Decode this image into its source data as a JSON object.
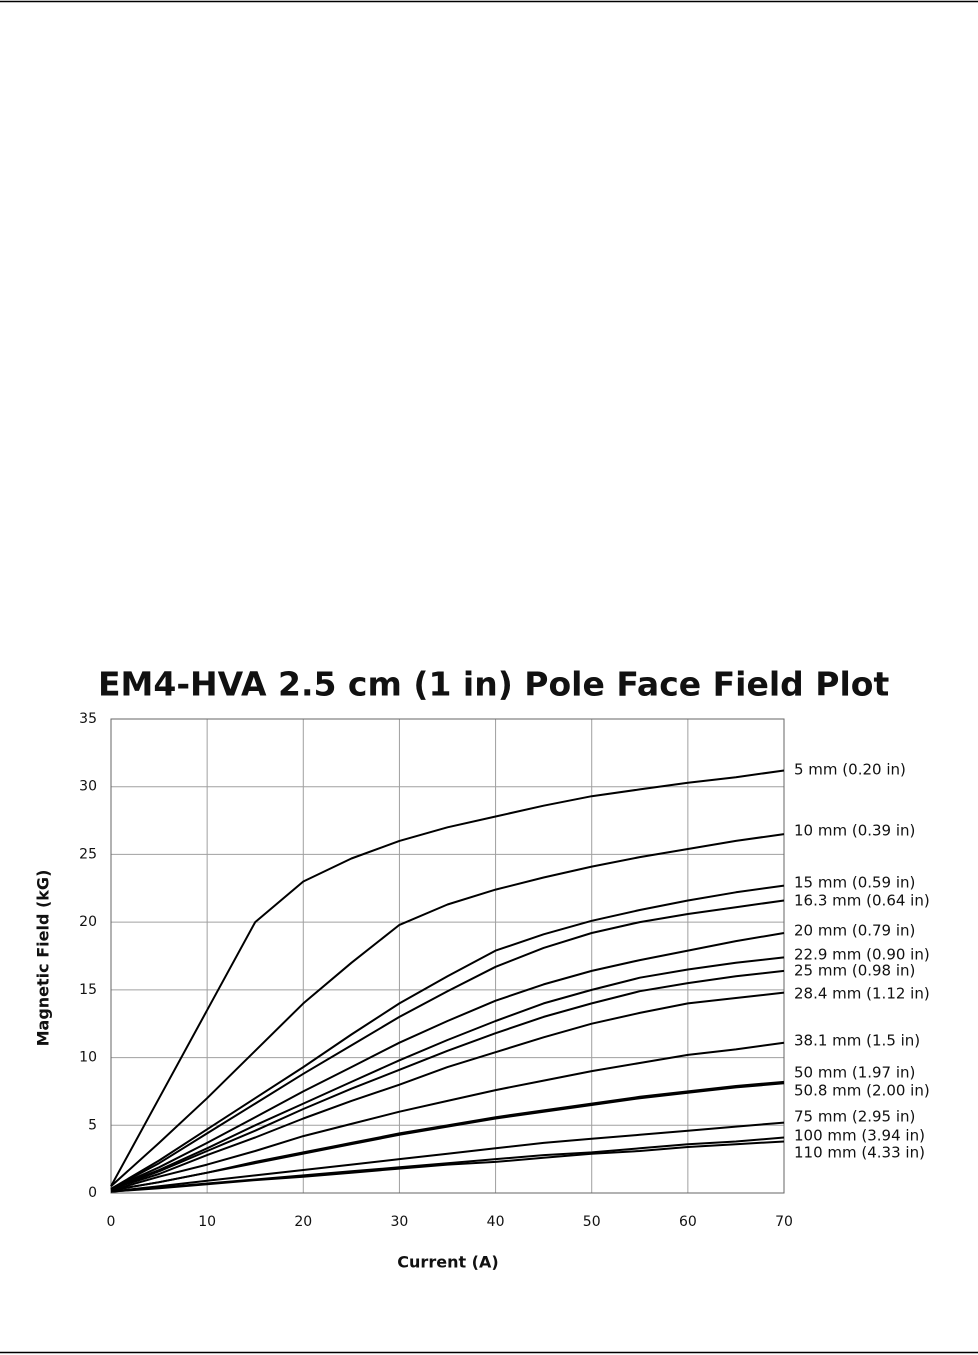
{
  "chart_data": {
    "type": "line",
    "title": "EM4-HVA 2.5 cm (1 in) Pole Face Field Plot",
    "x_label": "Current (A)",
    "y_label": "Magnetic Field (kG)",
    "x": [
      0,
      5,
      10,
      15,
      20,
      25,
      30,
      35,
      40,
      45,
      50,
      55,
      60,
      65,
      70
    ],
    "xlim": [
      0,
      70
    ],
    "xticks": [
      0,
      10,
      20,
      30,
      40,
      50,
      60,
      70
    ],
    "ylim": [
      0,
      35
    ],
    "yticks": [
      0,
      5,
      10,
      15,
      20,
      25,
      30,
      35
    ],
    "grid": true,
    "line_color": "#000000",
    "grid_color": "#a0a0a0",
    "series": [
      {
        "name": "5 mm (0.20 in)",
        "values": [
          0.5,
          7,
          13.5,
          20,
          23,
          24.7,
          26,
          27,
          27.8,
          28.6,
          29.3,
          29.8,
          30.3,
          30.7,
          31.2
        ]
      },
      {
        "name": "10 mm (0.39 in)",
        "values": [
          0.5,
          3.7,
          7,
          10.5,
          14,
          17,
          19.8,
          21.3,
          22.4,
          23.3,
          24.1,
          24.8,
          25.4,
          26,
          26.5
        ]
      },
      {
        "name": "15 mm (0.59 in)",
        "values": [
          0.3,
          2.4,
          4.7,
          7,
          9.3,
          11.7,
          14,
          16,
          17.9,
          19.1,
          20.1,
          20.9,
          21.6,
          22.2,
          22.7
        ]
      },
      {
        "name": "16.3 mm (0.64 in)",
        "values": [
          0.3,
          2.2,
          4.4,
          6.6,
          8.8,
          10.9,
          13,
          14.9,
          16.7,
          18.1,
          19.2,
          20,
          20.6,
          21.1,
          21.6
        ]
      },
      {
        "name": "20 mm (0.79 in)",
        "values": [
          0.3,
          1.9,
          3.7,
          5.6,
          7.5,
          9.3,
          11.1,
          12.7,
          14.2,
          15.4,
          16.4,
          17.2,
          17.9,
          18.6,
          19.2
        ]
      },
      {
        "name": "22.9 mm (0.90 in)",
        "values": [
          0.3,
          1.7,
          3.3,
          5,
          6.6,
          8.2,
          9.8,
          11.3,
          12.7,
          14,
          15,
          15.9,
          16.5,
          17,
          17.4
        ]
      },
      {
        "name": "25 mm (0.98 in)",
        "values": [
          0.3,
          1.6,
          3.1,
          4.6,
          6.2,
          7.7,
          9.1,
          10.5,
          11.8,
          13,
          14,
          14.9,
          15.5,
          16,
          16.4
        ]
      },
      {
        "name": "28.4 mm (1.12 in)",
        "values": [
          0.3,
          1.4,
          2.8,
          4.1,
          5.5,
          6.8,
          8,
          9.3,
          10.4,
          11.5,
          12.5,
          13.3,
          14,
          14.4,
          14.8
        ]
      },
      {
        "name": "38.1 mm (1.5 in)",
        "values": [
          0.2,
          1.2,
          2.1,
          3.1,
          4.2,
          5.1,
          6,
          6.8,
          7.6,
          8.3,
          9,
          9.6,
          10.2,
          10.6,
          11.1
        ]
      },
      {
        "name": "50 mm (1.97 in)",
        "values": [
          0.2,
          0.8,
          1.5,
          2.3,
          3,
          3.7,
          4.4,
          5,
          5.6,
          6.1,
          6.6,
          7.1,
          7.5,
          7.9,
          8.2
        ]
      },
      {
        "name": "50.8 mm (2.00 in)",
        "values": [
          0.2,
          0.8,
          1.5,
          2.2,
          2.9,
          3.6,
          4.3,
          4.9,
          5.5,
          6,
          6.5,
          7,
          7.4,
          7.8,
          8.1
        ]
      },
      {
        "name": "75 mm (2.95 in)",
        "values": [
          0.1,
          0.5,
          0.9,
          1.3,
          1.7,
          2.1,
          2.5,
          2.9,
          3.3,
          3.7,
          4,
          4.3,
          4.6,
          4.9,
          5.2
        ]
      },
      {
        "name": "100 mm (3.94 in)",
        "values": [
          0.1,
          0.4,
          0.7,
          1,
          1.3,
          1.6,
          1.9,
          2.2,
          2.5,
          2.8,
          3,
          3.3,
          3.6,
          3.8,
          4.1
        ]
      },
      {
        "name": "110 mm (4.33 in)",
        "values": [
          0.1,
          0.35,
          0.65,
          0.95,
          1.2,
          1.5,
          1.8,
          2.1,
          2.3,
          2.6,
          2.9,
          3.1,
          3.4,
          3.6,
          3.8
        ]
      }
    ]
  }
}
